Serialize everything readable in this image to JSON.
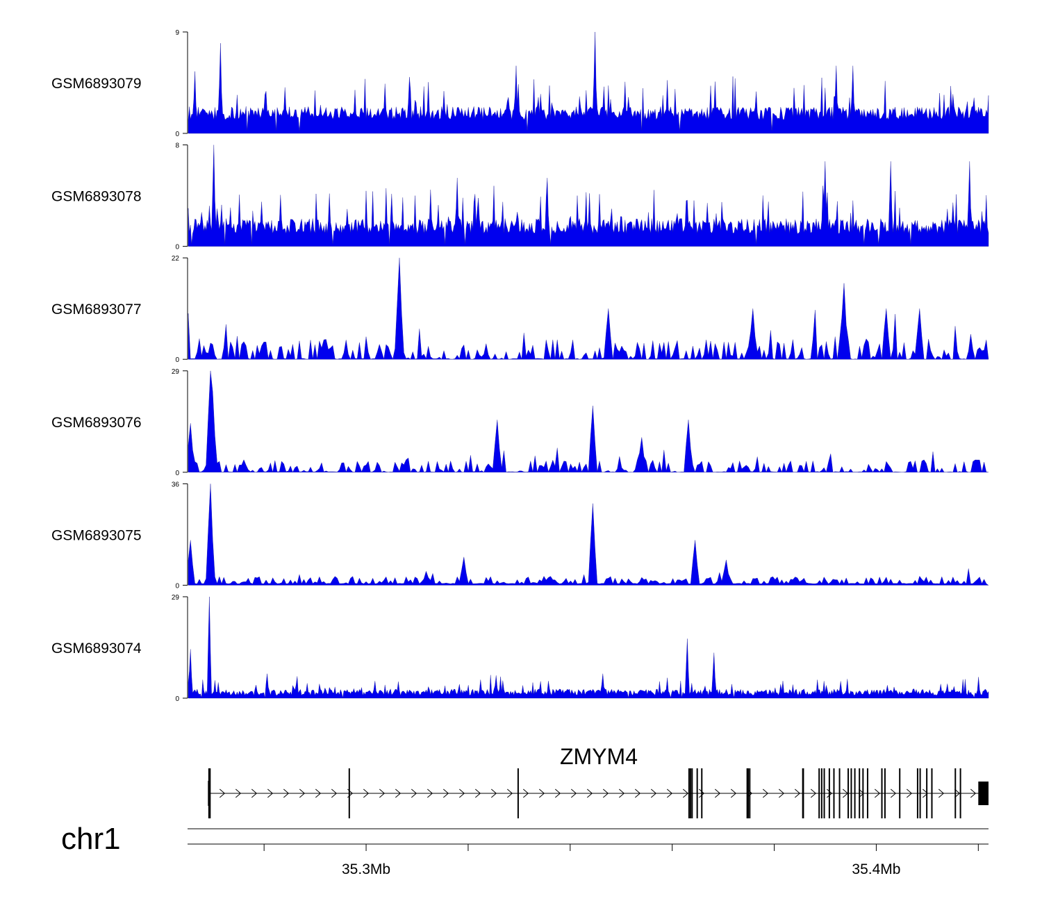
{
  "chart_data": {
    "type": "area",
    "colors": {
      "signal": "#0000ee",
      "gene": "#000000"
    },
    "region": {
      "start": 35.265,
      "end": 35.422,
      "unit": "Mb"
    },
    "tracks": [
      {
        "name": "GSM6893079",
        "ymax": 9,
        "ymin": 0,
        "ymax_label": "9",
        "ymin_label": "0",
        "style": "dense",
        "base": 1.2,
        "noise": 2.0,
        "peaks": [
          [
            35.2715,
            8.0
          ],
          [
            35.3448,
            9.0
          ],
          [
            35.3085,
            5.0
          ],
          [
            35.3294,
            6.0
          ],
          [
            35.3922,
            6.0
          ],
          [
            35.3955,
            6.0
          ],
          [
            35.2665,
            5.5
          ]
        ]
      },
      {
        "name": "GSM6893078",
        "ymax": 8,
        "ymin": 0,
        "ymax_label": "8",
        "ymin_label": "0",
        "style": "dense",
        "base": 1.0,
        "noise": 2.0,
        "peaks": [
          [
            35.2702,
            8.0
          ],
          [
            35.3899,
            6.7
          ],
          [
            35.4028,
            6.7
          ],
          [
            35.4183,
            6.7
          ],
          [
            35.3178,
            5.4
          ],
          [
            35.3355,
            5.4
          ]
        ]
      },
      {
        "name": "GSM6893077",
        "ymax": 22,
        "ymin": 0,
        "ymax_label": "22",
        "ymin_label": "0",
        "style": "sparse",
        "base": 0.0,
        "noise": 5.0,
        "peaks": [
          [
            35.3067,
            22.0
          ],
          [
            35.3938,
            16.5
          ],
          [
            35.3476,
            11.0
          ],
          [
            35.3757,
            11.0
          ],
          [
            35.4019,
            11.0
          ],
          [
            35.4086,
            11.0
          ]
        ]
      },
      {
        "name": "GSM6893076",
        "ymax": 29,
        "ymin": 0,
        "ymax_label": "29",
        "ymin_label": "0",
        "style": "sparse",
        "base": 0.0,
        "noise": 4.0,
        "peaks": [
          [
            35.2694,
            29.0
          ],
          [
            35.2698,
            23.0
          ],
          [
            35.2654,
            14.0
          ],
          [
            35.3446,
            19.0
          ],
          [
            35.3255,
            15.0
          ],
          [
            35.3631,
            15.0
          ],
          [
            35.3542,
            10.0
          ]
        ]
      },
      {
        "name": "GSM6893075",
        "ymax": 36,
        "ymin": 0,
        "ymax_label": "36",
        "ymin_label": "0",
        "style": "sparse",
        "base": 0.5,
        "noise": 3.0,
        "peaks": [
          [
            35.2694,
            36.0
          ],
          [
            35.3446,
            29.0
          ],
          [
            35.2657,
            16.0
          ],
          [
            35.3647,
            16.0
          ],
          [
            35.3193,
            10.0
          ],
          [
            35.3705,
            9.0
          ]
        ]
      },
      {
        "name": "GSM6893074",
        "ymax": 29,
        "ymin": 0,
        "ymax_label": "29",
        "ymin_label": "0",
        "style": "dense",
        "base": 0.8,
        "noise": 3.0,
        "peaks": [
          [
            35.2693,
            29.0
          ],
          [
            35.3629,
            17.0
          ],
          [
            35.3681,
            13.0
          ],
          [
            35.2655,
            14.0
          ],
          [
            35.2806,
            7.0
          ],
          [
            35.3254,
            6.5
          ],
          [
            35.3463,
            7.0
          ]
        ]
      }
    ],
    "gene": {
      "name": "ZMYM4",
      "strand": "+",
      "start": 35.2694,
      "end": 35.422,
      "exons": [
        35.2692,
        35.2694,
        35.2967,
        35.3298,
        35.3633,
        35.3636,
        35.3639,
        35.3649,
        35.3658,
        35.3747,
        35.3749,
        35.3752,
        35.3856,
        35.3857,
        35.3888,
        35.3893,
        35.3898,
        35.3908,
        35.3917,
        35.3928,
        35.3945,
        35.3951,
        35.3958,
        35.3967,
        35.3974,
        35.3983,
        35.4011,
        35.4017,
        35.4046,
        35.4081,
        35.4086,
        35.4099,
        35.4109,
        35.4155,
        35.4165
      ],
      "utr3": [
        35.42,
        35.422
      ]
    },
    "axis": {
      "chromosome": "chr1",
      "ticks": [
        35.28,
        35.3,
        35.32,
        35.34,
        35.36,
        35.38,
        35.4,
        35.42
      ],
      "tick_labels": [
        {
          "value": 35.3,
          "label": "35.3Mb"
        },
        {
          "value": 35.4,
          "label": "35.4Mb"
        }
      ]
    }
  }
}
